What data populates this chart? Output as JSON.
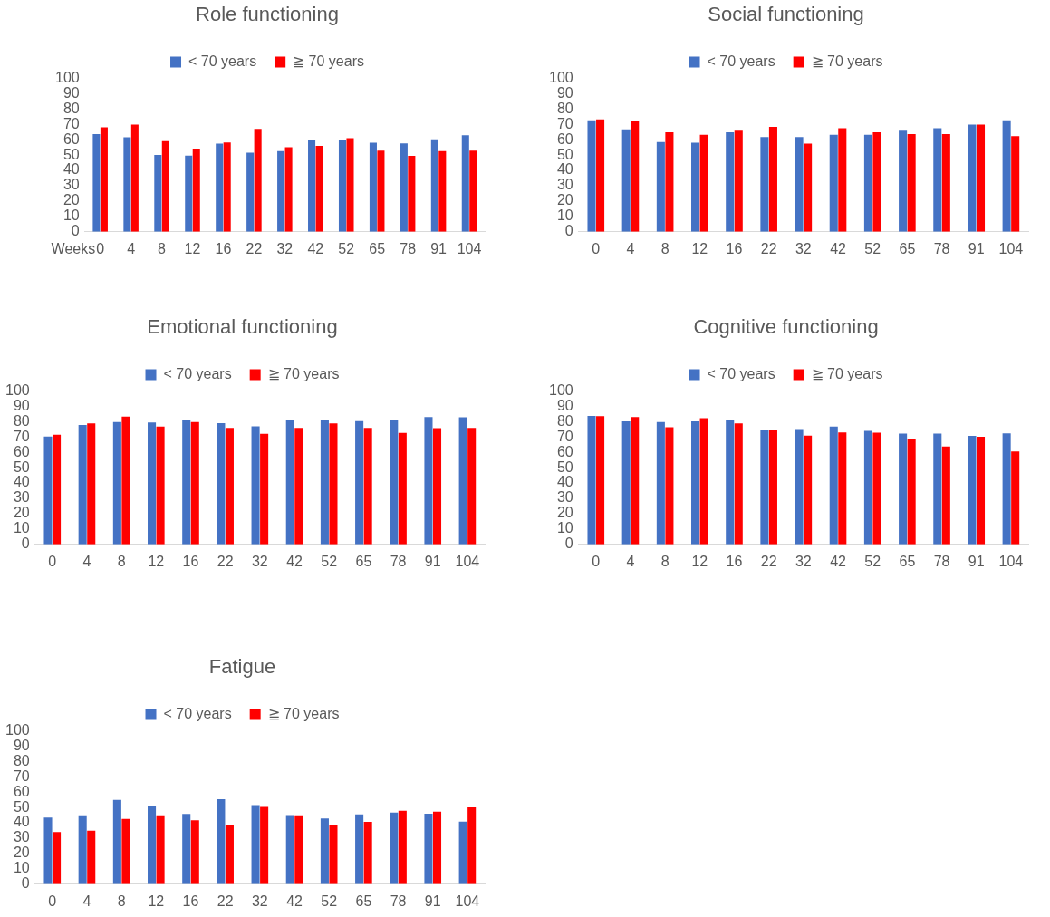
{
  "chart_data": [
    {
      "type": "bar",
      "title": "Role functioning",
      "xlabel": "Weeks",
      "categories": [
        "0",
        "4",
        "8",
        "12",
        "16",
        "22",
        "32",
        "42",
        "52",
        "65",
        "78",
        "91",
        "104"
      ],
      "legend": "top",
      "ylim": [
        0,
        100
      ],
      "yticks": [
        0,
        10,
        20,
        30,
        40,
        50,
        60,
        70,
        80,
        90,
        100
      ],
      "series": [
        {
          "name": "< 70 years",
          "color": "#4472c4",
          "values": [
            63.7,
            61.6,
            50,
            49.6,
            57.4,
            51.5,
            52.5,
            60,
            60,
            58,
            57.6,
            60.3,
            62.9
          ]
        },
        {
          "name": "≧ 70 years",
          "color": "#ff0000",
          "values": [
            68,
            69.8,
            59,
            54.2,
            58.2,
            67.1,
            55.1,
            56,
            61,
            52.9,
            49.4,
            52.5,
            52.9
          ]
        }
      ]
    },
    {
      "type": "bar",
      "title": "Social functioning",
      "categories": [
        "0",
        "4",
        "8",
        "12",
        "16",
        "22",
        "32",
        "42",
        "52",
        "65",
        "78",
        "91",
        "104"
      ],
      "legend": "top",
      "ylim": [
        0,
        100
      ],
      "yticks": [
        0,
        10,
        20,
        30,
        40,
        50,
        60,
        70,
        80,
        90,
        100
      ],
      "series": [
        {
          "name": "< 70 years",
          "color": "#4472c4",
          "values": [
            72.7,
            66.8,
            58.5,
            58.1,
            64.8,
            61.7,
            61.7,
            63.2,
            63.2,
            65.8,
            67.4,
            69.8,
            72.7
          ]
        },
        {
          "name": "≧ 70 years",
          "color": "#ff0000",
          "values": [
            73.3,
            72.3,
            64.8,
            63.2,
            65.8,
            68.4,
            57.5,
            67.4,
            64.8,
            63.6,
            63.6,
            69.8,
            62.3
          ]
        }
      ]
    },
    {
      "type": "bar",
      "title": "Emotional functioning",
      "categories": [
        "0",
        "4",
        "8",
        "12",
        "16",
        "22",
        "32",
        "42",
        "52",
        "65",
        "78",
        "91",
        "104"
      ],
      "legend": "top",
      "ylim": [
        0,
        100
      ],
      "yticks": [
        0,
        10,
        20,
        30,
        40,
        50,
        60,
        70,
        80,
        90,
        100
      ],
      "series": [
        {
          "name": "< 70 years",
          "color": "#4472c4",
          "values": [
            70.3,
            77.8,
            79.7,
            79.4,
            80.7,
            79,
            76.9,
            81.3,
            80.7,
            80.3,
            80.9,
            83,
            82.8
          ]
        },
        {
          "name": "≧ 70 years",
          "color": "#ff0000",
          "values": [
            71.4,
            78.8,
            83.3,
            76.7,
            79.7,
            75.9,
            72,
            75.9,
            78.8,
            75.9,
            72.7,
            75.8,
            75.9
          ]
        }
      ]
    },
    {
      "type": "bar",
      "title": "Cognitive functioning",
      "categories": [
        "0",
        "4",
        "8",
        "12",
        "16",
        "22",
        "32",
        "42",
        "52",
        "65",
        "78",
        "91",
        "104"
      ],
      "legend": "top",
      "ylim": [
        0,
        100
      ],
      "yticks": [
        0,
        10,
        20,
        30,
        40,
        50,
        60,
        70,
        80,
        90,
        100
      ],
      "series": [
        {
          "name": "< 70 years",
          "color": "#4472c4",
          "values": [
            83.7,
            80.1,
            79.7,
            80.1,
            80.7,
            74.2,
            75.2,
            76.8,
            74,
            72.2,
            72.2,
            70.7,
            72.4
          ]
        },
        {
          "name": "≧ 70 years",
          "color": "#ff0000",
          "values": [
            83.5,
            82.9,
            76.4,
            82.3,
            78.9,
            74.8,
            70.9,
            73,
            72.8,
            68.5,
            63.8,
            70.1,
            60.6
          ]
        }
      ]
    },
    {
      "type": "bar",
      "title": "Fatigue",
      "categories": [
        "0",
        "4",
        "8",
        "12",
        "16",
        "22",
        "32",
        "42",
        "52",
        "65",
        "78",
        "91",
        "104"
      ],
      "legend": "top",
      "ylim": [
        0,
        100
      ],
      "yticks": [
        0,
        10,
        20,
        30,
        40,
        50,
        60,
        70,
        80,
        90,
        100
      ],
      "series": [
        {
          "name": "< 70 years",
          "color": "#4472c4",
          "values": [
            43.4,
            44.9,
            54.9,
            51.1,
            45.8,
            55.3,
            51.5,
            45.1,
            42.8,
            45.5,
            46.6,
            46,
            40.8
          ]
        },
        {
          "name": "≧ 70 years",
          "color": "#ff0000",
          "values": [
            34,
            34.9,
            42.5,
            44.9,
            41.7,
            38.3,
            50.4,
            44.9,
            38.9,
            40.6,
            47.9,
            47.2,
            50
          ]
        }
      ]
    }
  ]
}
